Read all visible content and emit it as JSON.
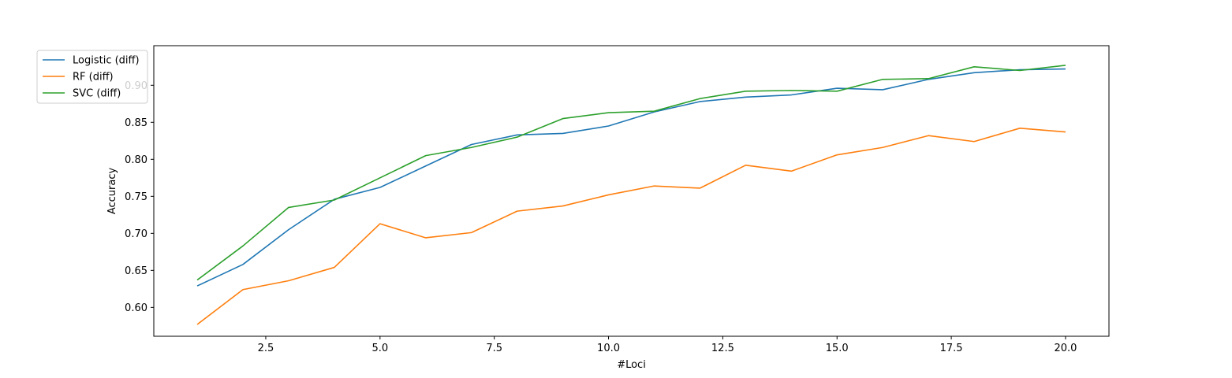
{
  "chart_data": {
    "type": "line",
    "title": "",
    "xlabel": "#Loci",
    "ylabel": "Accuracy",
    "xlim": [
      0.05,
      20.95
    ],
    "ylim": [
      0.561,
      0.9535
    ],
    "xticks": [
      2.5,
      5.0,
      7.5,
      10.0,
      12.5,
      15.0,
      17.5,
      20.0
    ],
    "xtick_labels": [
      "2.5",
      "5.0",
      "7.5",
      "10.0",
      "12.5",
      "15.0",
      "17.5",
      "20.0"
    ],
    "yticks": [
      0.6,
      0.65,
      0.7,
      0.75,
      0.8,
      0.85,
      0.9
    ],
    "ytick_labels": [
      "0.60",
      "0.65",
      "0.70",
      "0.75",
      "0.80",
      "0.85",
      "0.90"
    ],
    "grid": false,
    "legend_position": "top-left",
    "x": [
      1,
      2,
      3,
      4,
      5,
      6,
      7,
      8,
      9,
      10,
      11,
      12,
      13,
      14,
      15,
      16,
      17,
      18,
      19,
      20
    ],
    "series": [
      {
        "name": "Logistic (diff)",
        "color": "#1f77b4",
        "values": [
          0.629,
          0.658,
          0.705,
          0.746,
          0.762,
          0.791,
          0.82,
          0.833,
          0.835,
          0.845,
          0.864,
          0.878,
          0.884,
          0.887,
          0.896,
          0.894,
          0.908,
          0.917,
          0.921,
          0.922
        ]
      },
      {
        "name": "RF (diff)",
        "color": "#ff7f0e",
        "values": [
          0.577,
          0.624,
          0.636,
          0.654,
          0.713,
          0.694,
          0.701,
          0.73,
          0.737,
          0.752,
          0.764,
          0.761,
          0.792,
          0.784,
          0.806,
          0.816,
          0.832,
          0.824,
          0.842,
          0.837
        ]
      },
      {
        "name": "SVC (diff)",
        "color": "#2ca02c",
        "values": [
          0.637,
          0.683,
          0.735,
          0.745,
          0.775,
          0.805,
          0.816,
          0.83,
          0.855,
          0.863,
          0.865,
          0.882,
          0.892,
          0.893,
          0.892,
          0.908,
          0.909,
          0.925,
          0.92,
          0.927
        ]
      }
    ]
  }
}
